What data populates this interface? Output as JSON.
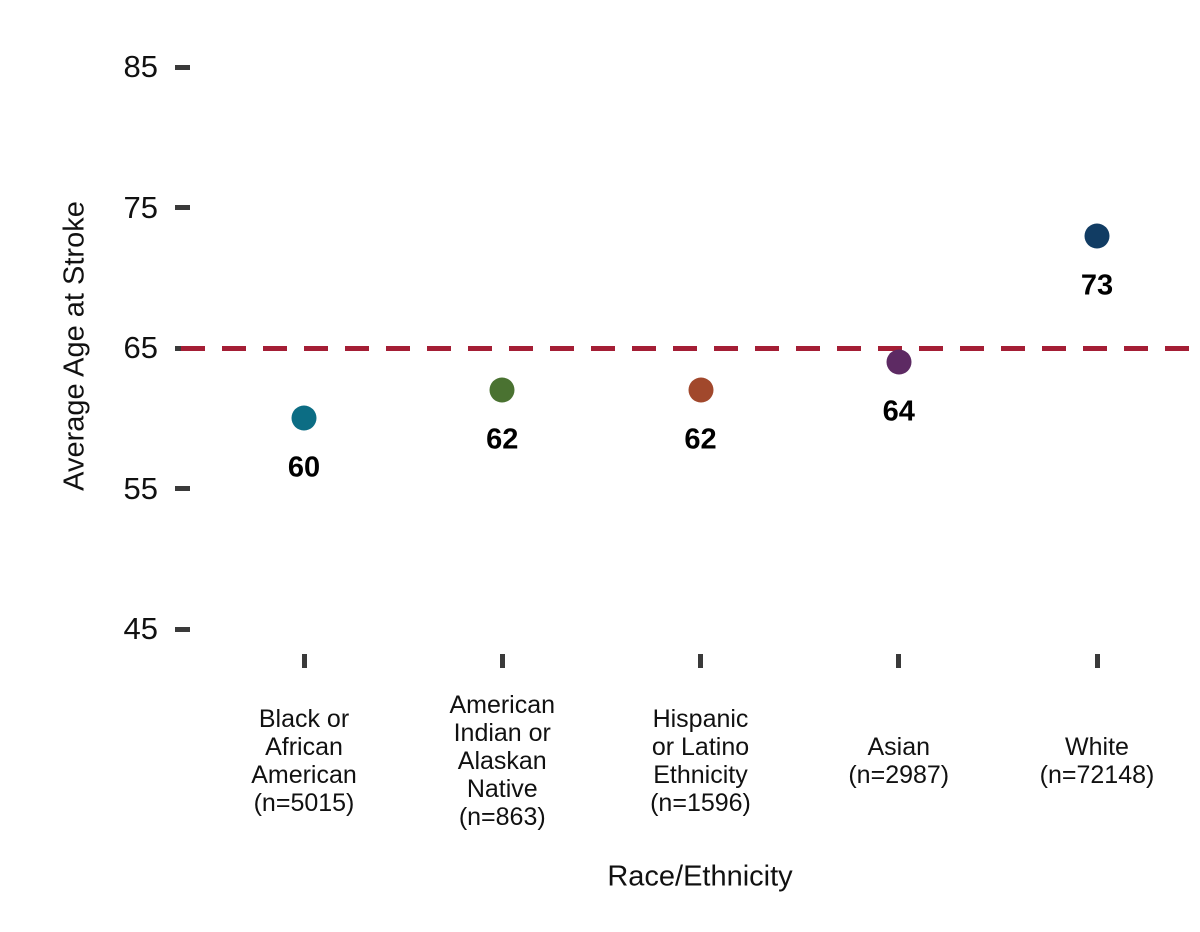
{
  "chart_data": {
    "type": "scatter",
    "title": "",
    "xlabel": "Race/Ethnicity",
    "ylabel": "Average Age at Stroke",
    "ylim": [
      45,
      85
    ],
    "y_ticks": [
      45,
      55,
      65,
      75,
      85
    ],
    "grid": false,
    "legend": "none",
    "reference_line": {
      "y": 65,
      "style": "dashed",
      "color": "#a41e35"
    },
    "points": [
      {
        "category": "Black or African American",
        "n_shown": "(n=5015)",
        "label_lines": [
          "Black or",
          "African",
          "American",
          "(n=5015)"
        ],
        "value": 60,
        "value_label": "60",
        "color": "#0c6d84"
      },
      {
        "category": "American Indian or Alaskan Native",
        "n_shown": "(n=863)",
        "label_lines": [
          "American",
          "Indian or",
          "Alaskan",
          "Native",
          "(n=863)"
        ],
        "value": 62,
        "value_label": "62",
        "color": "#4a7231"
      },
      {
        "category": "Hispanic or Latino Ethnicity",
        "n_shown": "(n=1596)",
        "label_lines": [
          "Hispanic",
          "or Latino",
          "Ethnicity",
          "(n=1596)"
        ],
        "value": 62,
        "value_label": "62",
        "color": "#a1482c"
      },
      {
        "category": "Asian",
        "n_shown": "(n=2987)",
        "label_lines": [
          "Asian",
          "(n=2987)"
        ],
        "value": 64,
        "value_label": "64",
        "color": "#5d2a63"
      },
      {
        "category": "White",
        "n_shown": "(n=72148)",
        "label_lines": [
          "White",
          "(n=72148)"
        ],
        "value": 73,
        "value_label": "73",
        "color": "#113c63"
      }
    ],
    "tick_color": "#3a3a3a",
    "text_color": "#000000"
  }
}
